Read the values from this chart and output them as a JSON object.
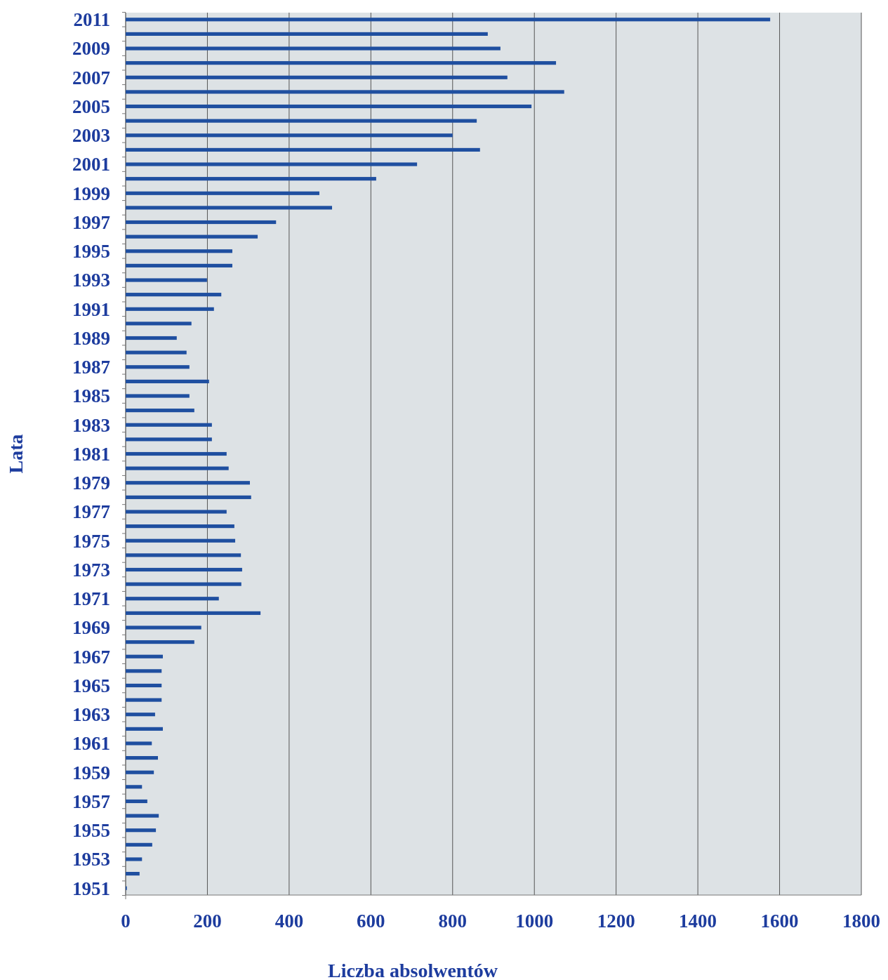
{
  "chart_data": {
    "type": "bar",
    "orientation": "horizontal",
    "xlabel": "Liczba absolwentów",
    "ylabel": "Lata",
    "categories": [
      "2011",
      null,
      "2009",
      null,
      "2007",
      null,
      "2005",
      null,
      "2003",
      null,
      "2001",
      null,
      "1999",
      null,
      "1997",
      null,
      "1995",
      null,
      "1993",
      null,
      "1991",
      null,
      "1989",
      null,
      "1987",
      null,
      "1985",
      null,
      "1983",
      null,
      "1981",
      null,
      "1979",
      null,
      "1977",
      null,
      "1975",
      null,
      "1973",
      null,
      "1971",
      null,
      "1969",
      null,
      "1967",
      null,
      "1965",
      null,
      "1963",
      null,
      "1961",
      null,
      "1959",
      null,
      "1957",
      null,
      "1955",
      null,
      "1953",
      null,
      "1951"
    ],
    "values": [
      1577,
      886,
      917,
      1053,
      934,
      1073,
      993,
      859,
      800,
      867,
      713,
      613,
      474,
      505,
      368,
      323,
      261,
      261,
      199,
      234,
      216,
      161,
      125,
      149,
      156,
      204,
      156,
      168,
      211,
      211,
      247,
      252,
      304,
      307,
      247,
      266,
      268,
      282,
      285,
      283,
      228,
      330,
      185,
      168,
      91,
      88,
      88,
      88,
      72,
      91,
      64,
      79,
      69,
      40,
      53,
      81,
      74,
      65,
      40,
      34,
      3
    ],
    "color": "#1f4fa0",
    "xlim": [
      0,
      1800
    ],
    "xticks": [
      0,
      200,
      400,
      600,
      800,
      1000,
      1200,
      1400,
      1600,
      1800
    ],
    "grid": "x"
  }
}
